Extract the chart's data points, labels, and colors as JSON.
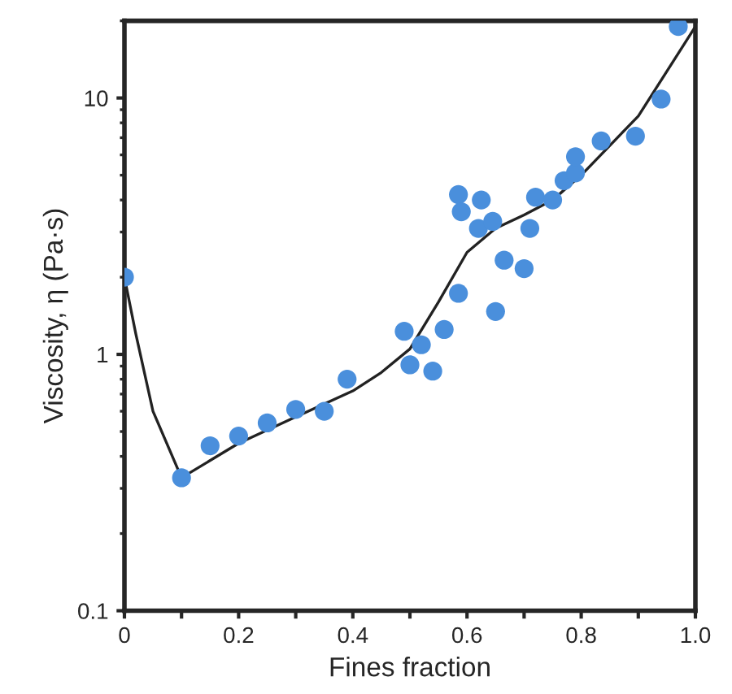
{
  "chart_data": {
    "type": "scatter",
    "xlabel": "Fines fraction",
    "ylabel": "Viscosity, η (Pa·s)",
    "log": "y",
    "grid": false,
    "xlim": [
      0,
      1.0
    ],
    "ylim": [
      0.1,
      20
    ],
    "xticks": [
      0,
      {
        "value": 0.1,
        "label": null
      },
      0.2,
      {
        "value": 0.3,
        "label": null
      },
      0.4,
      {
        "value": 0.5,
        "label": null
      },
      0.6,
      {
        "value": 0.7,
        "label": null
      },
      0.8,
      {
        "value": 0.9,
        "label": null
      },
      {
        "value": 1.0,
        "label": "1.0"
      }
    ],
    "yticks": [
      0.1,
      1,
      10
    ],
    "series": [
      {
        "color": "#4a8fdc",
        "marker": "circle",
        "x": [
          0.0,
          0.1,
          0.15,
          0.2,
          0.25,
          0.3,
          0.35,
          0.39,
          0.49,
          0.5,
          0.52,
          0.54,
          0.56,
          0.585,
          0.585,
          0.59,
          0.62,
          0.625,
          0.645,
          0.65,
          0.665,
          0.7,
          0.71,
          0.72,
          0.75,
          0.77,
          0.79,
          0.79,
          0.835,
          0.895,
          0.94,
          0.97
        ],
        "values": [
          2.0,
          0.33,
          0.44,
          0.48,
          0.54,
          0.61,
          0.6,
          0.8,
          1.23,
          0.91,
          1.09,
          0.86,
          1.25,
          1.73,
          4.2,
          3.6,
          3.1,
          4.0,
          3.3,
          1.47,
          2.33,
          2.16,
          3.1,
          4.1,
          4.0,
          4.76,
          5.1,
          5.9,
          6.8,
          7.1,
          9.9,
          19
        ]
      },
      {
        "type": "line",
        "color": "#222222",
        "marker": "none",
        "line_style": "solid",
        "x": [
          0.0,
          0.02,
          0.05,
          0.1,
          0.2,
          0.3,
          0.4,
          0.45,
          0.5,
          0.55,
          0.6,
          0.65,
          0.7,
          0.75,
          0.8,
          0.9,
          1.0
        ],
        "values": [
          2.0,
          1.2,
          0.6,
          0.33,
          0.45,
          0.57,
          0.72,
          0.85,
          1.05,
          1.6,
          2.5,
          3.1,
          3.5,
          4.0,
          5.0,
          8.5,
          19
        ]
      }
    ]
  }
}
